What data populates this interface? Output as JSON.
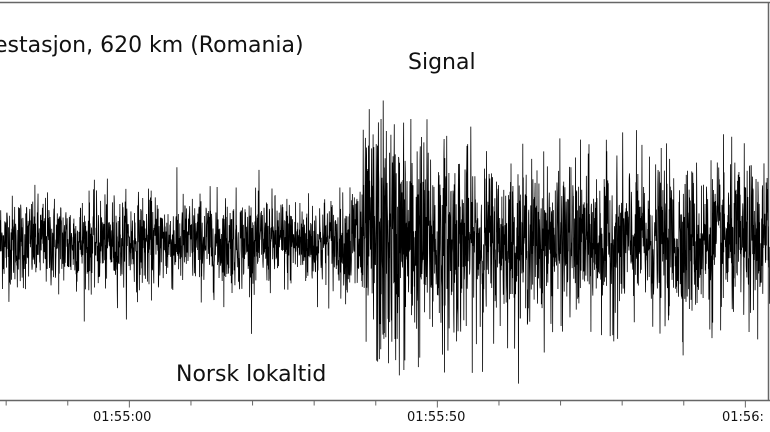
{
  "chart_data": {
    "type": "line",
    "title": "estasjon, 620 km (Romania)",
    "xlabel": "Norsk lokaltid",
    "annotations": [
      {
        "text": "Signal",
        "x_seconds_after_0155": 48
      }
    ],
    "x_tick_labels": [
      "01:55:00",
      "01:55:50",
      "01:56:"
    ],
    "x_ticks_seconds_after_0155": [
      0,
      50,
      100
    ],
    "x_range_seconds_after_0155": [
      -21,
      104
    ],
    "minor_tick_interval_seconds": 10,
    "series": [
      {
        "kind": "seismogram_envelope",
        "noise_amplitude": 0.35,
        "signal_start_seconds": 35,
        "signal_peak_seconds": 40,
        "signal_peak_amplitude": 1.0,
        "signal_decay_end_seconds": 60,
        "min": -1.0,
        "max": 1.0
      }
    ],
    "grid": false
  }
}
